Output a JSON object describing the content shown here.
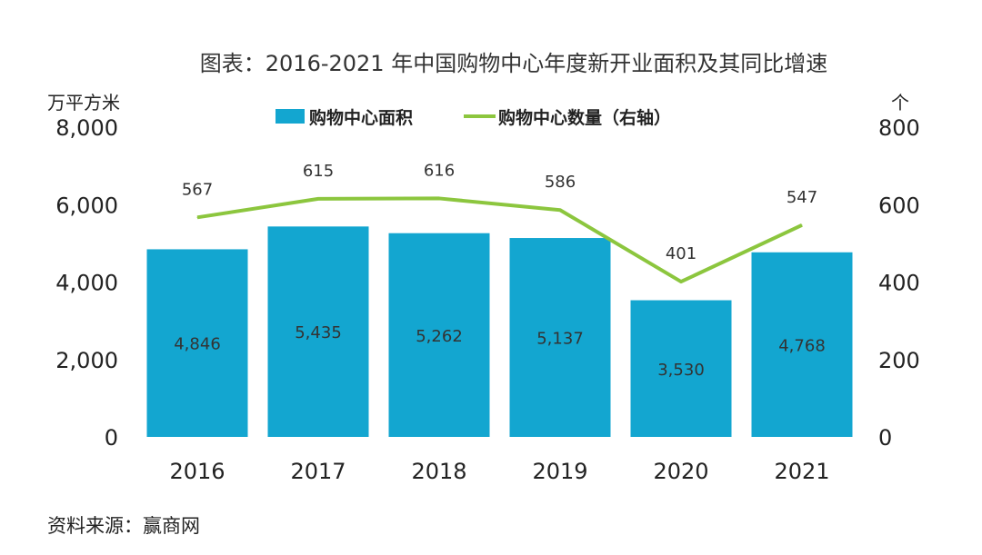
{
  "chart_data": {
    "type": "bar+line",
    "title": "图表：2016-2021 年中国购物中心年度新开业面积及其同比增速",
    "categories": [
      "2016",
      "2017",
      "2018",
      "2019",
      "2020",
      "2021"
    ],
    "series": [
      {
        "name": "购物中心面积",
        "type": "bar",
        "axis": "left",
        "values": [
          4846,
          5435,
          5262,
          5137,
          3530,
          4768
        ],
        "labels": [
          "4,846",
          "5,435",
          "5,262",
          "5,137",
          "3,530",
          "4,768"
        ],
        "color": "#13a6d0"
      },
      {
        "name": "购物中心数量（右轴）",
        "type": "line",
        "axis": "right",
        "values": [
          567,
          615,
          616,
          586,
          401,
          547
        ],
        "labels": [
          "567",
          "615",
          "616",
          "586",
          "401",
          "547"
        ],
        "color": "#8cc63e"
      }
    ],
    "left_axis": {
      "unit": "万平方米",
      "range": [
        0,
        8000
      ],
      "ticks": [
        "0",
        "2,000",
        "4,000",
        "6,000",
        "8,000"
      ]
    },
    "right_axis": {
      "unit": "个",
      "range": [
        0,
        800
      ],
      "ticks": [
        "0",
        "200",
        "400",
        "600",
        "800"
      ]
    },
    "grid": false,
    "legend": "top-center"
  },
  "source": "资料来源：赢商网"
}
